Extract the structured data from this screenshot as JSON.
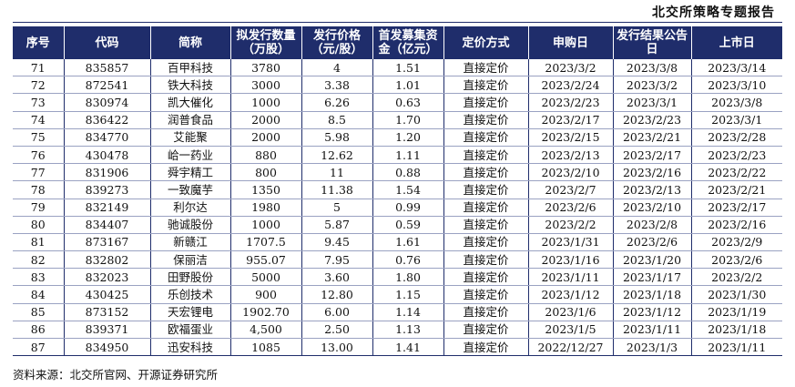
{
  "header": {
    "title": "北交所策略专题报告"
  },
  "table": {
    "columns": [
      "序号",
      "代码",
      "简称",
      "拟发行数量（万股）",
      "发行价格（元/股）",
      "首发募集资金（亿元）",
      "定价方式",
      "申购日",
      "发行结果公告日",
      "上市日"
    ],
    "rows": [
      [
        "71",
        "835857",
        "百甲科技",
        "3780",
        "4",
        "1.51",
        "直接定价",
        "2023/3/2",
        "2023/3/8",
        "2023/3/14"
      ],
      [
        "72",
        "872541",
        "铁大科技",
        "3000",
        "3.38",
        "1.01",
        "直接定价",
        "2023/2/24",
        "2023/3/2",
        "2023/3/10"
      ],
      [
        "73",
        "830974",
        "凯大催化",
        "1000",
        "6.26",
        "0.63",
        "直接定价",
        "2023/2/23",
        "2023/3/1",
        "2023/3/8"
      ],
      [
        "74",
        "836422",
        "润普食品",
        "2000",
        "8.5",
        "1.70",
        "直接定价",
        "2023/2/17",
        "2023/2/23",
        "2023/3/1"
      ],
      [
        "75",
        "834770",
        "艾能聚",
        "2000",
        "5.98",
        "1.20",
        "直接定价",
        "2023/2/15",
        "2023/2/21",
        "2023/2/28"
      ],
      [
        "76",
        "430478",
        "峆一药业",
        "880",
        "12.62",
        "1.11",
        "直接定价",
        "2023/2/13",
        "2023/2/17",
        "2023/2/23"
      ],
      [
        "77",
        "831906",
        "舜宇精工",
        "800",
        "11",
        "0.88",
        "直接定价",
        "2023/2/10",
        "2023/2/16",
        "2023/2/22"
      ],
      [
        "78",
        "839273",
        "一致魔芋",
        "1350",
        "11.38",
        "1.54",
        "直接定价",
        "2023/2/7",
        "2023/2/13",
        "2023/2/21"
      ],
      [
        "79",
        "832149",
        "利尔达",
        "1980",
        "5",
        "0.99",
        "直接定价",
        "2023/2/6",
        "2023/2/10",
        "2023/2/17"
      ],
      [
        "80",
        "834407",
        "驰诚股份",
        "1000",
        "5.87",
        "0.59",
        "直接定价",
        "2023/2/2",
        "2023/2/8",
        "2023/2/16"
      ],
      [
        "81",
        "873167",
        "新赣江",
        "1707.5",
        "9.45",
        "1.61",
        "直接定价",
        "2023/1/31",
        "2023/2/6",
        "2023/2/9"
      ],
      [
        "82",
        "832802",
        "保丽洁",
        "955.07",
        "7.95",
        "0.76",
        "直接定价",
        "2023/1/16",
        "2023/1/20",
        "2023/2/6"
      ],
      [
        "83",
        "832023",
        "田野股份",
        "5000",
        "3.60",
        "1.80",
        "直接定价",
        "2023/1/11",
        "2023/1/17",
        "2023/2/2"
      ],
      [
        "84",
        "430425",
        "乐创技术",
        "900",
        "12.80",
        "1.15",
        "直接定价",
        "2023/1/12",
        "2023/1/18",
        "2023/1/30"
      ],
      [
        "85",
        "873152",
        "天宏锂电",
        "1902.70",
        "6.00",
        "1.14",
        "直接定价",
        "2023/1/6",
        "2023/1/12",
        "2023/1/19"
      ],
      [
        "86",
        "839371",
        "欧福蛋业",
        "4,500",
        "2.50",
        "1.13",
        "直接定价",
        "2023/1/5",
        "2023/1/11",
        "2023/1/18"
      ],
      [
        "87",
        "834950",
        "迅安科技",
        "1085",
        "13.00",
        "1.41",
        "直接定价",
        "2022/12/27",
        "2023/1/3",
        "2023/1/11"
      ]
    ]
  },
  "footer": {
    "source": "资料来源：北交所官网、开源证券研究所"
  },
  "colors": {
    "header_bg": "#1f2d6b",
    "header_text": "#ffffff"
  }
}
